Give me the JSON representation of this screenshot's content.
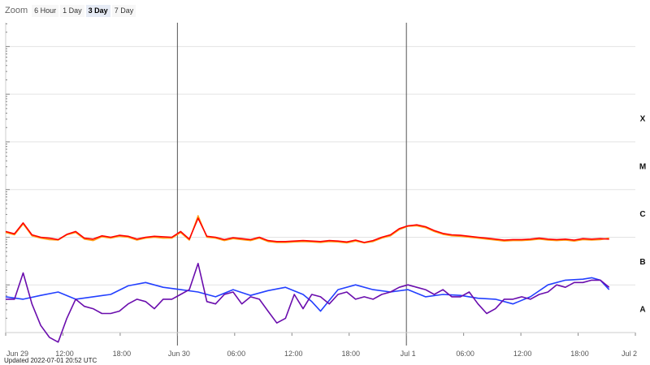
{
  "zoom": {
    "label": "Zoom",
    "buttons": [
      "6 Hour",
      "1 Day",
      "3 Day",
      "7 Day"
    ],
    "active": "3 Day"
  },
  "updated": "Updated 2022-07-01 20:52 UTC",
  "chart_data": {
    "type": "line",
    "x_unit": "hours since Jun 29 00:00 UTC",
    "x_range": [
      0,
      72
    ],
    "x_ticks": [
      {
        "label": "Jun 29",
        "day": true
      },
      {
        "label": "12:00",
        "day": false
      },
      {
        "label": "18:00",
        "day": false
      },
      {
        "label": "Jun 30",
        "day": true
      },
      {
        "label": "06:00",
        "day": false
      },
      {
        "label": "12:00",
        "day": false
      },
      {
        "label": "18:00",
        "day": false
      },
      {
        "label": "Jul 1",
        "day": true
      },
      {
        "label": "06:00",
        "day": false
      },
      {
        "label": "12:00",
        "day": false
      },
      {
        "label": "18:00",
        "day": false
      },
      {
        "label": "Jul 2",
        "day": true
      }
    ],
    "y_scale": "log",
    "y_range_log10": [
      -9,
      -2.5
    ],
    "flare_classes": [
      {
        "label": "X",
        "log10": -4
      },
      {
        "label": "M",
        "log10": -5
      },
      {
        "label": "C",
        "log10": -6
      },
      {
        "label": "B",
        "log10": -7
      },
      {
        "label": "A",
        "log10": -8
      }
    ],
    "colors": {
      "long_primary": "#ff0000",
      "long_secondary": "#ffa11a",
      "short_primary": "#2340ff",
      "short_secondary": "#6a0dad"
    },
    "series": [
      {
        "color_key": "long_primary",
        "x": [
          0,
          1,
          2,
          3,
          4,
          5,
          6,
          7,
          8,
          9,
          10,
          11,
          12,
          13,
          14,
          15,
          16,
          17,
          18,
          19,
          20,
          21,
          22,
          23,
          24,
          25,
          26,
          27,
          28,
          29,
          30,
          31,
          32,
          33,
          34,
          35,
          36,
          37,
          38,
          39,
          40,
          41,
          42,
          43,
          44,
          45,
          46,
          47,
          48,
          49,
          50,
          51,
          52,
          53,
          54,
          55,
          56,
          57,
          58,
          59,
          60,
          61,
          62,
          63,
          64,
          65,
          66,
          67,
          68,
          69
        ],
        "y": [
          -6.88,
          -6.93,
          -6.7,
          -6.95,
          -7.0,
          -7.02,
          -7.05,
          -6.94,
          -6.88,
          -7.02,
          -7.04,
          -6.97,
          -7.0,
          -6.96,
          -6.98,
          -7.04,
          -7.0,
          -6.98,
          -6.99,
          -7.0,
          -6.88,
          -7.04,
          -6.6,
          -6.98,
          -7.0,
          -7.05,
          -7.01,
          -7.03,
          -7.05,
          -7.0,
          -7.07,
          -7.09,
          -7.09,
          -7.08,
          -7.07,
          -7.08,
          -7.09,
          -7.07,
          -7.08,
          -7.1,
          -7.06,
          -7.11,
          -7.07,
          -7.0,
          -6.95,
          -6.82,
          -6.76,
          -6.74,
          -6.78,
          -6.86,
          -6.92,
          -6.95,
          -6.96,
          -6.98,
          -7.0,
          -7.02,
          -7.04,
          -7.06,
          -7.05,
          -7.05,
          -7.04,
          -7.02,
          -7.04,
          -7.05,
          -7.04,
          -7.06,
          -7.03,
          -7.04,
          -7.03,
          -7.04
        ]
      },
      {
        "color_key": "long_secondary",
        "x": [
          0,
          1,
          2,
          3,
          4,
          5,
          6,
          7,
          8,
          9,
          10,
          11,
          12,
          13,
          14,
          15,
          16,
          17,
          18,
          19,
          20,
          21,
          22,
          23,
          24,
          25,
          26,
          27,
          28,
          29,
          30,
          31,
          32,
          33,
          34,
          35,
          36,
          37,
          38,
          39,
          40,
          41,
          42,
          43,
          44,
          45,
          46,
          47,
          48,
          49,
          50,
          51,
          52,
          53,
          54,
          55,
          56,
          57,
          58,
          59,
          60,
          61,
          62,
          63,
          64,
          65,
          66,
          67,
          68,
          69
        ],
        "y": [
          -6.9,
          -6.95,
          -6.72,
          -6.97,
          -7.02,
          -7.05,
          -7.06,
          -6.95,
          -6.9,
          -7.04,
          -7.07,
          -6.99,
          -7.02,
          -6.98,
          -7.0,
          -7.06,
          -7.02,
          -7.0,
          -7.02,
          -7.02,
          -6.9,
          -7.06,
          -6.55,
          -7.0,
          -7.02,
          -7.07,
          -7.03,
          -7.05,
          -7.07,
          -7.02,
          -7.09,
          -7.11,
          -7.11,
          -7.1,
          -7.09,
          -7.1,
          -7.11,
          -7.09,
          -7.1,
          -7.12,
          -7.08,
          -7.12,
          -7.09,
          -7.02,
          -6.97,
          -6.84,
          -6.77,
          -6.76,
          -6.8,
          -6.88,
          -6.94,
          -6.97,
          -6.98,
          -7.0,
          -7.02,
          -7.04,
          -7.06,
          -7.08,
          -7.07,
          -7.07,
          -7.06,
          -7.04,
          -7.06,
          -7.07,
          -7.06,
          -7.08,
          -7.05,
          -7.06,
          -7.05,
          -7.02
        ]
      },
      {
        "color_key": "short_primary",
        "x": [
          0,
          2,
          4,
          6,
          8,
          10,
          12,
          14,
          16,
          18,
          20,
          22,
          24,
          26,
          28,
          30,
          32,
          34,
          35,
          36,
          38,
          40,
          42,
          44,
          46,
          48,
          50,
          52,
          54,
          56,
          58,
          60,
          62,
          64,
          66,
          67,
          68,
          69
        ],
        "y": [
          -8.25,
          -8.3,
          -8.22,
          -8.15,
          -8.3,
          -8.25,
          -8.2,
          -8.02,
          -7.95,
          -8.05,
          -8.1,
          -8.15,
          -8.25,
          -8.1,
          -8.22,
          -8.12,
          -8.05,
          -8.2,
          -8.35,
          -8.55,
          -8.1,
          -8.0,
          -8.1,
          -8.15,
          -8.1,
          -8.25,
          -8.2,
          -8.22,
          -8.28,
          -8.3,
          -8.4,
          -8.25,
          -8.0,
          -7.9,
          -7.88,
          -7.85,
          -7.9,
          -8.1
        ]
      },
      {
        "color_key": "short_secondary",
        "x": [
          0,
          1,
          2,
          3,
          4,
          5,
          6,
          7,
          8,
          9,
          10,
          11,
          12,
          13,
          14,
          15,
          16,
          17,
          18,
          19,
          20,
          21,
          22,
          23,
          24,
          25,
          26,
          27,
          28,
          29,
          30,
          31,
          32,
          33,
          34,
          35,
          36,
          37,
          38,
          39,
          40,
          41,
          42,
          43,
          44,
          45,
          46,
          47,
          48,
          49,
          50,
          51,
          52,
          53,
          54,
          55,
          56,
          57,
          58,
          59,
          60,
          61,
          62,
          63,
          64,
          65,
          66,
          67,
          68,
          69
        ],
        "y": [
          -8.3,
          -8.3,
          -7.75,
          -8.4,
          -8.85,
          -9.1,
          -9.2,
          -8.7,
          -8.3,
          -8.45,
          -8.5,
          -8.6,
          -8.6,
          -8.55,
          -8.4,
          -8.3,
          -8.35,
          -8.5,
          -8.3,
          -8.3,
          -8.2,
          -8.1,
          -7.55,
          -8.35,
          -8.4,
          -8.2,
          -8.15,
          -8.4,
          -8.25,
          -8.3,
          -8.55,
          -8.8,
          -8.7,
          -8.2,
          -8.5,
          -8.2,
          -8.25,
          -8.4,
          -8.2,
          -8.15,
          -8.3,
          -8.25,
          -8.3,
          -8.2,
          -8.15,
          -8.05,
          -8.0,
          -8.05,
          -8.1,
          -8.2,
          -8.1,
          -8.25,
          -8.25,
          -8.15,
          -8.4,
          -8.6,
          -8.5,
          -8.3,
          -8.3,
          -8.25,
          -8.3,
          -8.2,
          -8.15,
          -8.0,
          -8.05,
          -7.95,
          -7.95,
          -7.9,
          -7.9,
          -8.05
        ]
      }
    ],
    "grid": true,
    "legend": "none"
  }
}
